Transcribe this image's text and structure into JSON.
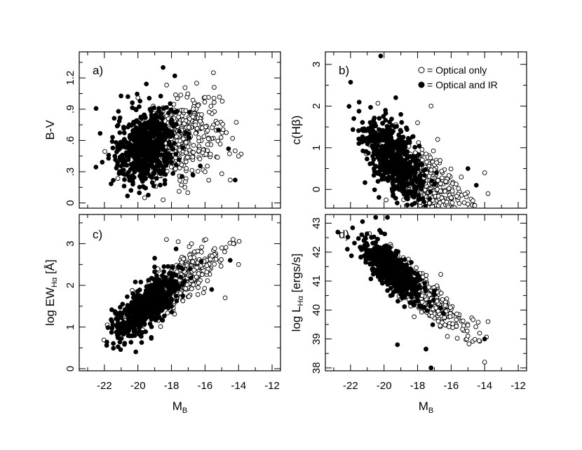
{
  "chart_data": [
    {
      "type": "scatter",
      "panel_label": "a)",
      "ylabel": "B-V",
      "xlabel": "",
      "xlim": [
        -23.5,
        -11.5
      ],
      "ylim": [
        -0.05,
        1.45
      ],
      "x_ticks": [
        -22,
        -20,
        -18,
        -16,
        -14,
        -12
      ],
      "y_ticks": [
        0,
        0.3,
        0.6,
        0.9,
        1.2
      ],
      "y_tick_labels": [
        "0",
        ".3",
        ".6",
        ".9",
        "1.2"
      ],
      "cloud": {
        "x_mean": -18.6,
        "x_sd": 1.5,
        "y_mean": 0.58,
        "y_sd": 0.19,
        "slope": 0.045
      },
      "series": [
        {
          "name": "Optical only",
          "values": [
            [
              -19.6,
              0.05
            ],
            [
              -18.5,
              0.03
            ],
            [
              -16.5,
              1.15
            ],
            [
              -15.5,
              1.25
            ],
            [
              -14.2,
              0.5
            ],
            [
              -14.0,
              0.45
            ],
            [
              -17.2,
              0.15
            ],
            [
              -16.0,
              0.3
            ],
            [
              -15.0,
              0.28
            ],
            [
              -14.5,
              0.22
            ]
          ]
        },
        {
          "name": "Optical and IR",
          "values": [
            [
              -18.5,
              1.3
            ],
            [
              -17.8,
              1.22
            ],
            [
              -20.6,
              1.02
            ],
            [
              -21.3,
              0.58
            ],
            [
              -20.3,
              0.18
            ],
            [
              -14.6,
              0.52
            ],
            [
              -14.2,
              0.22
            ],
            [
              -15.2,
              0.7
            ]
          ]
        }
      ]
    },
    {
      "type": "scatter",
      "panel_label": "b)",
      "ylabel": "c(Hβ)",
      "xlabel": "",
      "xlim": [
        -23.5,
        -11.5
      ],
      "ylim": [
        -0.45,
        3.3
      ],
      "x_ticks": [
        -22,
        -20,
        -18,
        -16,
        -14,
        -12
      ],
      "y_ticks": [
        0,
        1,
        2,
        3
      ],
      "y_tick_labels": [
        "0",
        "1",
        "2",
        "3"
      ],
      "cloud": {
        "x_mean": -18.5,
        "x_sd": 1.5,
        "y_mean": 0.45,
        "y_sd": 0.4,
        "slope": -0.28
      },
      "series": [
        {
          "name": "Optical only",
          "values": [
            [
              -17.2,
              2.0
            ],
            [
              -18.0,
              1.6
            ],
            [
              -16.8,
              1.2
            ],
            [
              -14.0,
              0.4
            ],
            [
              -13.8,
              -0.1
            ],
            [
              -15.0,
              -0.35
            ],
            [
              -16.0,
              -0.2
            ]
          ]
        },
        {
          "name": "Optical and IR",
          "values": [
            [
              -20.8,
              3.35
            ],
            [
              -20.2,
              3.2
            ],
            [
              -19.3,
              2.2
            ],
            [
              -21.5,
              1.1
            ],
            [
              -19.0,
              1.8
            ],
            [
              -15.0,
              0.5
            ],
            [
              -14.5,
              0.1
            ]
          ]
        }
      ],
      "legend": {
        "placement": "top-right",
        "entries": [
          "= Optical only",
          "= Optical and IR"
        ]
      }
    },
    {
      "type": "scatter",
      "panel_label": "c)",
      "ylabel": "log  EW",
      "ylabel_sub": "Hα",
      "ylabel_unit": "[Å]",
      "xlabel": "M",
      "xlabel_sub": "B",
      "xlim": [
        -23.5,
        -11.5
      ],
      "ylim": [
        -0.05,
        3.7
      ],
      "x_ticks": [
        -22,
        -20,
        -18,
        -16,
        -14,
        -12
      ],
      "x_tick_labels": [
        "-22",
        "-20",
        "-18",
        "-16",
        "-14",
        "-12"
      ],
      "y_ticks": [
        0,
        1,
        2,
        3
      ],
      "y_tick_labels": [
        "0",
        "1",
        "2",
        "3"
      ],
      "cloud": {
        "x_mean": -18.6,
        "x_sd": 1.5,
        "y_mean": 1.75,
        "y_sd": 0.28,
        "slope": 0.28
      },
      "series": [
        {
          "name": "Optical only",
          "values": [
            [
              -18.3,
              3.1
            ],
            [
              -17.6,
              3.05
            ],
            [
              -14.3,
              3.0
            ],
            [
              -14.0,
              2.5
            ],
            [
              -15.0,
              2.9
            ],
            [
              -16.8,
              3.0
            ],
            [
              -14.8,
              1.7
            ]
          ]
        },
        {
          "name": "Optical and IR",
          "values": [
            [
              -21.3,
              1.2
            ],
            [
              -20.6,
              0.85
            ],
            [
              -19.0,
              2.65
            ],
            [
              -19.2,
              0.75
            ],
            [
              -14.5,
              2.6
            ],
            [
              -15.6,
              1.9
            ]
          ]
        }
      ]
    },
    {
      "type": "scatter",
      "panel_label": "d)",
      "ylabel": "log  L",
      "ylabel_sub": "Hα",
      "ylabel_unit": "[ergs/s]",
      "xlabel": "M",
      "xlabel_sub": "B",
      "xlim": [
        -23.5,
        -11.5
      ],
      "ylim": [
        37.9,
        43.3
      ],
      "x_ticks": [
        -22,
        -20,
        -18,
        -16,
        -14,
        -12
      ],
      "x_tick_labels": [
        "-22",
        "-20",
        "-18",
        "-16",
        "-14",
        "-12"
      ],
      "y_ticks": [
        38,
        39,
        40,
        41,
        42,
        43
      ],
      "y_tick_labels": [
        "38",
        "39",
        "40",
        "41",
        "42",
        "43"
      ],
      "cloud": {
        "x_mean": -18.6,
        "x_sd": 1.5,
        "y_mean": 40.95,
        "y_sd": 0.35,
        "slope": -0.45
      },
      "series": [
        {
          "name": "Optical only",
          "values": [
            [
              -14.0,
              38.2
            ],
            [
              -13.8,
              39.6
            ],
            [
              -14.3,
              39.2
            ],
            [
              -15.0,
              39.1
            ],
            [
              -17.2,
              38.0
            ],
            [
              -17.5,
              38.65
            ]
          ]
        },
        {
          "name": "Optical and IR",
          "values": [
            [
              -20.5,
              43.2
            ],
            [
              -19.8,
              43.2
            ],
            [
              -21.2,
              42.4
            ],
            [
              -17.2,
              38.0
            ],
            [
              -17.5,
              38.65
            ],
            [
              -19.2,
              38.8
            ],
            [
              -14.0,
              39.0
            ]
          ]
        }
      ]
    }
  ]
}
